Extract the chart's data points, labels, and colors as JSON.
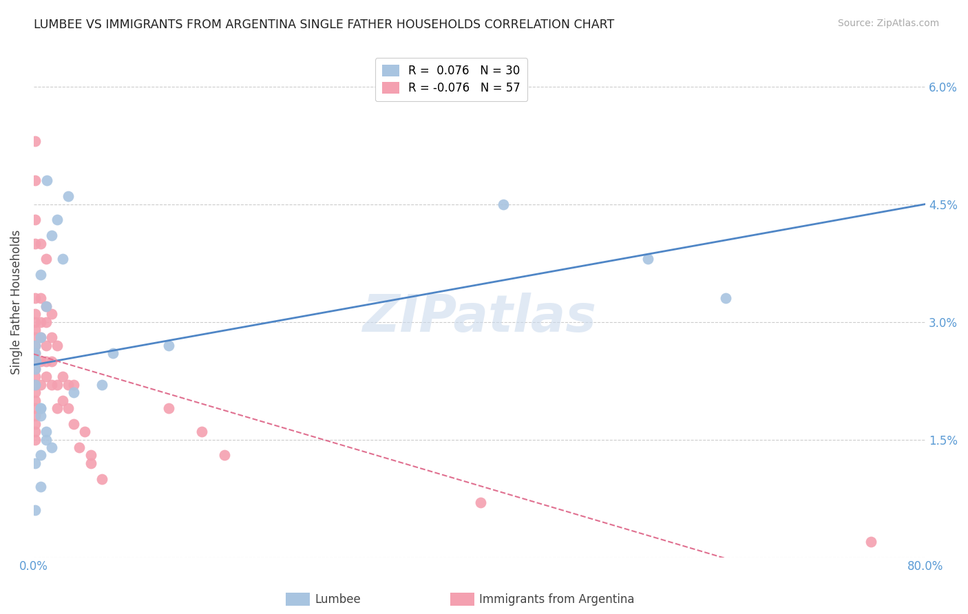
{
  "title": "LUMBEE VS IMMIGRANTS FROM ARGENTINA SINGLE FATHER HOUSEHOLDS CORRELATION CHART",
  "source": "Source: ZipAtlas.com",
  "ylabel": "Single Father Households",
  "watermark": "ZIPatlas",
  "legend_labels": [
    "R =  0.076   N = 30",
    "R = -0.076   N = 57"
  ],
  "xmin": 0.0,
  "xmax": 0.8,
  "ymin": 0.0,
  "ymax": 0.065,
  "yticks": [
    0.0,
    0.015,
    0.03,
    0.045,
    0.06
  ],
  "ytick_labels": [
    "",
    "1.5%",
    "3.0%",
    "4.5%",
    "6.0%"
  ],
  "xticks": [
    0.0,
    0.1,
    0.2,
    0.3,
    0.4,
    0.5,
    0.6,
    0.7,
    0.8
  ],
  "xtick_labels": [
    "0.0%",
    "",
    "",
    "",
    "",
    "",
    "",
    "",
    "80.0%"
  ],
  "blue_color": "#a8c4e0",
  "pink_color": "#f4a0b0",
  "blue_line_color": "#4f86c6",
  "pink_line_color": "#e07090",
  "grid_color": "#cccccc",
  "lumbee_x": [
    0.002,
    0.012,
    0.006,
    0.031,
    0.021,
    0.016,
    0.006,
    0.026,
    0.011,
    0.001,
    0.006,
    0.001,
    0.001,
    0.001,
    0.006,
    0.011,
    0.071,
    0.061,
    0.006,
    0.011,
    0.121,
    0.551,
    0.621,
    0.421,
    0.001,
    0.006,
    0.016,
    0.036,
    0.001,
    0.006
  ],
  "lumbee_y": [
    0.025,
    0.048,
    0.019,
    0.046,
    0.043,
    0.041,
    0.036,
    0.038,
    0.032,
    0.027,
    0.028,
    0.026,
    0.024,
    0.022,
    0.018,
    0.016,
    0.026,
    0.022,
    0.019,
    0.015,
    0.027,
    0.038,
    0.033,
    0.045,
    0.012,
    0.013,
    0.014,
    0.021,
    0.006,
    0.009
  ],
  "argentina_x": [
    0.001,
    0.001,
    0.001,
    0.001,
    0.001,
    0.001,
    0.001,
    0.001,
    0.001,
    0.001,
    0.001,
    0.001,
    0.001,
    0.001,
    0.001,
    0.001,
    0.001,
    0.001,
    0.001,
    0.001,
    0.001,
    0.001,
    0.006,
    0.006,
    0.006,
    0.006,
    0.006,
    0.006,
    0.011,
    0.011,
    0.011,
    0.011,
    0.011,
    0.011,
    0.016,
    0.016,
    0.016,
    0.016,
    0.021,
    0.021,
    0.021,
    0.026,
    0.026,
    0.031,
    0.031,
    0.036,
    0.036,
    0.041,
    0.046,
    0.051,
    0.051,
    0.061,
    0.121,
    0.151,
    0.171,
    0.401,
    0.751
  ],
  "argentina_y": [
    0.053,
    0.048,
    0.043,
    0.04,
    0.033,
    0.031,
    0.03,
    0.029,
    0.028,
    0.027,
    0.026,
    0.025,
    0.024,
    0.023,
    0.022,
    0.021,
    0.02,
    0.019,
    0.018,
    0.017,
    0.016,
    0.015,
    0.04,
    0.033,
    0.03,
    0.028,
    0.025,
    0.022,
    0.038,
    0.032,
    0.03,
    0.027,
    0.025,
    0.023,
    0.031,
    0.028,
    0.025,
    0.022,
    0.027,
    0.022,
    0.019,
    0.023,
    0.02,
    0.022,
    0.019,
    0.022,
    0.017,
    0.014,
    0.016,
    0.013,
    0.012,
    0.01,
    0.019,
    0.016,
    0.013,
    0.007,
    0.002
  ]
}
